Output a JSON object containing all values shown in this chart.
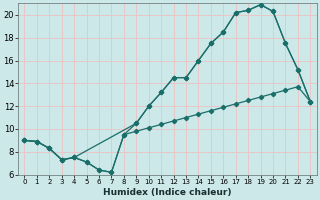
{
  "xlabel": "Humidex (Indice chaleur)",
  "bg_color": "#cce8e8",
  "grid_color": "#e8c8c8",
  "line_color": "#1a6e6a",
  "xlim": [
    -0.5,
    23.5
  ],
  "ylim": [
    6,
    21
  ],
  "xticks": [
    0,
    1,
    2,
    3,
    4,
    5,
    6,
    7,
    8,
    9,
    10,
    11,
    12,
    13,
    14,
    15,
    16,
    17,
    18,
    19,
    20,
    21,
    22,
    23
  ],
  "yticks": [
    6,
    8,
    10,
    12,
    14,
    16,
    18,
    20
  ],
  "line1_x": [
    0,
    1,
    2,
    3,
    4,
    5,
    6,
    7,
    8,
    9,
    10,
    11,
    12,
    13,
    14,
    15,
    16,
    17,
    18,
    19,
    20,
    21,
    22,
    23
  ],
  "line1_y": [
    9.0,
    8.9,
    8.3,
    7.3,
    7.5,
    7.1,
    6.4,
    6.2,
    9.5,
    9.8,
    10.1,
    10.4,
    10.7,
    11.0,
    11.3,
    11.6,
    11.9,
    12.2,
    12.5,
    12.8,
    13.1,
    13.4,
    13.7,
    12.4
  ],
  "line2_x": [
    0,
    1,
    2,
    3,
    4,
    5,
    6,
    7,
    8,
    9,
    10,
    11,
    12,
    13,
    14,
    15,
    16,
    17,
    18,
    19,
    20,
    21,
    22,
    23
  ],
  "line2_y": [
    9.0,
    8.9,
    8.3,
    7.3,
    7.5,
    7.1,
    6.4,
    6.2,
    9.5,
    10.5,
    12.0,
    13.2,
    14.5,
    14.5,
    16.0,
    17.5,
    18.5,
    20.2,
    20.4,
    20.9,
    20.3,
    17.5,
    15.2,
    12.4
  ],
  "line3_x": [
    0,
    1,
    2,
    3,
    4,
    9,
    10,
    11,
    12,
    13,
    14,
    15,
    16,
    17,
    18,
    19,
    20,
    21,
    22,
    23
  ],
  "line3_y": [
    9.0,
    8.9,
    8.3,
    7.3,
    7.5,
    10.5,
    12.0,
    13.2,
    14.5,
    14.5,
    16.0,
    17.5,
    18.5,
    20.2,
    20.4,
    20.9,
    20.3,
    17.5,
    15.2,
    12.4
  ]
}
